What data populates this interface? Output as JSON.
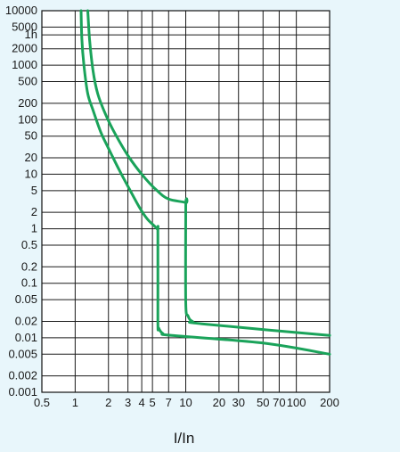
{
  "chart_data": {
    "type": "line",
    "title": "",
    "xlabel": "I/In",
    "ylabel": "",
    "x_scale": "log",
    "xlim": [
      0.5,
      200
    ],
    "ylim": [
      0.001,
      10000
    ],
    "grid": true,
    "legend": "none",
    "x_ticks": [
      0.5,
      1,
      2,
      3,
      4,
      5,
      7,
      10,
      20,
      30,
      50,
      70,
      100,
      200
    ],
    "x_tick_labels": [
      "0.5",
      "1",
      "2",
      "3",
      "4",
      "5",
      "7",
      "10",
      "20",
      "30",
      "50",
      "70",
      "100",
      "200"
    ],
    "y_ticks": [
      10000,
      5000,
      3600,
      2000,
      1000,
      500,
      200,
      100,
      50,
      20,
      10,
      5,
      2,
      1,
      0.5,
      0.2,
      0.1,
      0.05,
      0.02,
      0.01,
      0.005,
      0.002,
      0.001
    ],
    "y_tick_labels": [
      "10000",
      "5000",
      "1h",
      "2000",
      "1000",
      "500",
      "200",
      "100",
      "50",
      "20",
      "10",
      "5",
      "2",
      "1",
      "0.5",
      "0.2",
      "0.1",
      "0.05",
      "0.02",
      "0.01",
      "0.005",
      "0.002",
      "0.001"
    ],
    "line_color": "#1aa35a",
    "series": [
      {
        "x": [
          1.13,
          1.15,
          1.2,
          1.3,
          1.45,
          1.7,
          2.0,
          2.5,
          3.0,
          3.8,
          4.5,
          5.5,
          5.6,
          5.6,
          5.7,
          6.2,
          7.5,
          50,
          200
        ],
        "y": [
          10000,
          3000,
          1000,
          300,
          150,
          60,
          30,
          12,
          6,
          2.5,
          1.5,
          1.0,
          0.8,
          0.02,
          0.015,
          0.012,
          0.011,
          0.008,
          0.005
        ]
      },
      {
        "x": [
          1.3,
          1.35,
          1.45,
          1.6,
          1.9,
          2.3,
          3.0,
          4.0,
          5.5,
          7.0,
          10.0,
          10.0,
          10.0,
          10.5,
          11.5,
          14,
          200
        ],
        "y": [
          10000,
          3000,
          800,
          300,
          120,
          55,
          22,
          10,
          5,
          3.5,
          3.0,
          2.5,
          0.045,
          0.025,
          0.02,
          0.018,
          0.011
        ]
      }
    ]
  }
}
